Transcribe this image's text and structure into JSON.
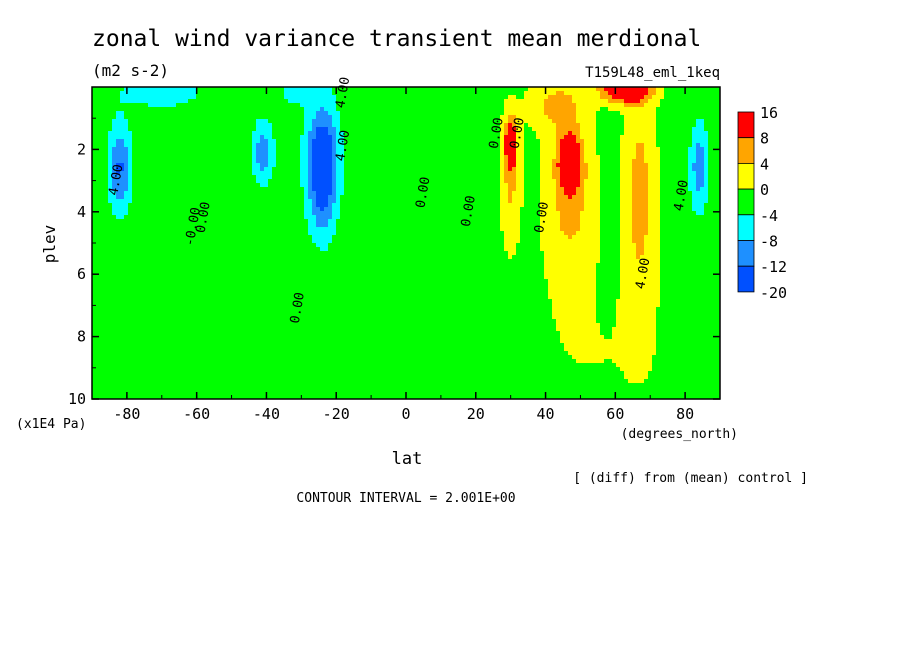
{
  "chart_data": {
    "type": "heatmap",
    "title": "zonal wind variance transient mean merdional",
    "units": "(m2 s-2)",
    "run_label": "T159L48_eml_1keq",
    "xlabel": "lat",
    "x_units": "(degrees_north)",
    "ylabel": "plev",
    "y_units": "(x1E4 Pa)",
    "xlim": [
      -90,
      90
    ],
    "ylim": [
      0,
      10
    ],
    "y_inverted": true,
    "x_ticks": [
      -80,
      -60,
      -40,
      -20,
      0,
      20,
      40,
      60,
      80
    ],
    "x_tick_labels": [
      "-80",
      "-60",
      "-40",
      "-20",
      "0",
      "20",
      "40",
      "60",
      "80"
    ],
    "y_ticks": [
      2,
      4,
      6,
      8,
      10
    ],
    "y_tick_labels": [
      "2",
      "4",
      "6",
      "8",
      "10"
    ],
    "contour_labels": [
      "4.00",
      "0.00",
      "0.00",
      "4.00",
      "0.00",
      "0.00",
      "0.00",
      "0.00",
      "4.00",
      "4.00",
      "4.00",
      "0.00",
      "-0.00"
    ],
    "contour_label_positions": [
      [
        -82,
        3.0
      ],
      [
        -57,
        4.2
      ],
      [
        -30,
        7.1
      ],
      [
        -17,
        1.9
      ],
      [
        6,
        3.4
      ],
      [
        19,
        4.0
      ],
      [
        33,
        1.5
      ],
      [
        40,
        4.2
      ],
      [
        69,
        6.0
      ],
      [
        80,
        3.5
      ],
      [
        -17,
        0.2
      ],
      [
        27,
        1.5
      ],
      [
        -60,
        4.5
      ]
    ],
    "colorbar": {
      "levels": [
        "16",
        "8",
        "4",
        "0",
        "-4",
        "-8",
        "-12",
        "-20"
      ],
      "colors": [
        "#ff0000",
        "#ffa500",
        "#ffff00",
        "#00ff00",
        "#00ffff",
        "#1e90ff",
        "#0050ff"
      ]
    },
    "field_features": [
      {
        "lat": -82,
        "plev": 2.6,
        "value": -11,
        "wlat": 3.2,
        "wp": 1.4
      },
      {
        "lat": -41,
        "plev": 2.1,
        "value": -9,
        "wlat": 3.0,
        "wp": 1.0
      },
      {
        "lat": -24,
        "plev": 2.2,
        "value": -15,
        "wlat": 4.5,
        "wp": 1.6
      },
      {
        "lat": -24,
        "plev": 3.8,
        "value": -6,
        "wlat": 4.0,
        "wp": 1.4
      },
      {
        "lat": -70,
        "plev": 0.2,
        "value": -5,
        "wlat": 12.0,
        "wp": 0.5
      },
      {
        "lat": -30,
        "plev": 0.2,
        "value": -5,
        "wlat": 6.0,
        "wp": 0.4
      },
      {
        "lat": 84,
        "plev": 2.6,
        "value": -9,
        "wlat": 2.6,
        "wp": 1.4
      },
      {
        "lat": 30,
        "plev": 1.8,
        "value": 14,
        "wlat": 1.6,
        "wp": 0.8
      },
      {
        "lat": 30,
        "plev": 3.0,
        "value": 6,
        "wlat": 2.8,
        "wp": 2.0
      },
      {
        "lat": 47,
        "plev": 2.4,
        "value": 18,
        "wlat": 3.0,
        "wp": 0.8
      },
      {
        "lat": 47,
        "plev": 3.5,
        "value": 7,
        "wlat": 7.0,
        "wp": 2.5
      },
      {
        "lat": 67,
        "plev": 3.5,
        "value": 7,
        "wlat": 4.5,
        "wp": 3.5
      },
      {
        "lat": 63,
        "plev": 0.1,
        "value": 18,
        "wlat": 7.0,
        "wp": 0.4
      },
      {
        "lat": 43,
        "plev": 0.6,
        "value": 6,
        "wlat": 8.0,
        "wp": 0.8
      },
      {
        "lat": 55,
        "plev": 8.5,
        "value": 1.5,
        "wlat": 30.0,
        "wp": 3.0
      }
    ],
    "field_background": -1.5
  },
  "footer": {
    "annotation": "[ (diff) from (mean) control ]",
    "contour_interval": "CONTOUR INTERVAL = 2.001E+00"
  }
}
